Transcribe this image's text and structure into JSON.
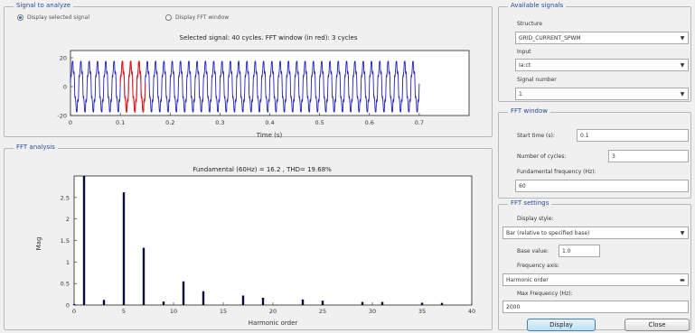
{
  "signal_group": {
    "title": "Signal to analyze",
    "radio_selected": "Display selected signal",
    "radio_fft": "Display FFT window",
    "plot_title": "Selected signal: 40 cycles. FFT window (in red): 3 cycles",
    "xlabel": "Time (s)"
  },
  "fft_group": {
    "title": "FFT analysis",
    "plot_title": "Fundamental (60Hz) = 16.2 , THD= 19.68%",
    "ylabel": "Mag",
    "xlabel": "Harmonic order"
  },
  "available_signals": {
    "title": "Available signals",
    "structure_label": "Structure",
    "structure_value": "GRID_CURRENT_SPWM",
    "input_label": "Input",
    "input_value": "Ia:ct",
    "signal_number_label": "Signal number",
    "signal_number_value": "1"
  },
  "fft_window": {
    "title": "FFT window",
    "start_time_label": "Start time (s):",
    "start_time_value": "0.1",
    "cycles_label": "Number of cycles:",
    "cycles_value": "3",
    "fundamental_label": "Fundamental frequency (Hz):",
    "fundamental_value": "60"
  },
  "fft_settings": {
    "title": "FFT settings",
    "display_style_label": "Display style:",
    "display_style_value": "Bar (relative to specified base)",
    "base_value_label": "Base value:",
    "base_value": "1.0",
    "frequency_axis_label": "Frequency axis:",
    "frequency_axis_value": "Harmonic order",
    "max_frequency_label": "Max Frequency (Hz):",
    "max_frequency_value": "2000"
  },
  "buttons": {
    "display": "Display",
    "close": "Close"
  },
  "colors": {
    "signal": "#1f1fbf",
    "fft_window": "#e02020",
    "bar": "#0a0a3a",
    "group_title": "#2a4a9a"
  },
  "chart_data": [
    {
      "type": "line",
      "title": "Selected signal: 40 cycles. FFT window (in red): 3 cycles",
      "xlabel": "Time (s)",
      "ylabel": "",
      "xlim": [
        0,
        0.8
      ],
      "ylim": [
        -20,
        25
      ],
      "x_ticks": [
        "0",
        "0.1",
        "0.2",
        "0.3",
        "0.4",
        "0.5",
        "0.6",
        "0.7"
      ],
      "y_ticks": [
        "20",
        "0",
        "-20"
      ],
      "fundamental_hz": 60,
      "cycles": 40,
      "amplitude": 16.2,
      "series": [
        {
          "x_range": [
            0,
            0.7
          ],
          "color": "#1f1fbf"
        },
        {
          "x_range": [
            0.1,
            0.15
          ],
          "color": "#e02020"
        }
      ]
    },
    {
      "type": "bar",
      "title": "Fundamental (60Hz) = 16.2 , THD= 19.68%",
      "xlabel": "Harmonic order",
      "ylabel": "Mag",
      "xlim": [
        0,
        40
      ],
      "ylim": [
        0,
        3
      ],
      "x_ticks": [
        "0",
        "5",
        "10",
        "15",
        "20",
        "25",
        "30",
        "35",
        "40"
      ],
      "y_ticks": [
        "0",
        "0.5",
        "1",
        "1.5",
        "2",
        "2.5"
      ],
      "x": [
        0,
        1,
        3,
        5,
        7,
        9,
        11,
        13,
        17,
        19,
        23,
        25,
        29,
        31,
        35,
        37
      ],
      "values": [
        0.02,
        3.2,
        0.12,
        2.62,
        1.33,
        0.08,
        0.55,
        0.32,
        0.22,
        0.17,
        0.13,
        0.1,
        0.07,
        0.07,
        0.05,
        0.05
      ]
    }
  ]
}
